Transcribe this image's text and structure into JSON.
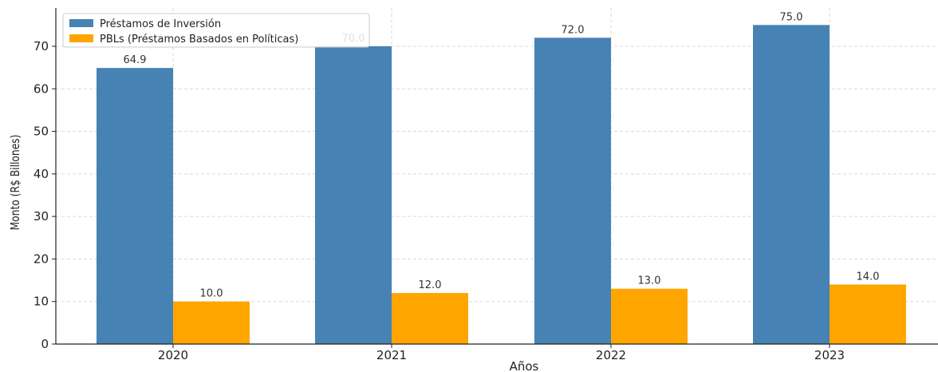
{
  "chart_data": {
    "type": "bar",
    "title": "",
    "xlabel": "Años",
    "ylabel": "Monto (R$ Billones)",
    "categories": [
      "2020",
      "2021",
      "2022",
      "2023"
    ],
    "series": [
      {
        "name": "Préstamos de Inversión",
        "color": "#4682B4",
        "values": [
          64.9,
          70.0,
          72.0,
          75.0
        ],
        "labels": [
          "64.9",
          "70.0",
          "72.0",
          "75.0"
        ]
      },
      {
        "name": "PBLs (Préstamos Basados en Políticas)",
        "color": "#FFA500",
        "values": [
          10.0,
          12.0,
          13.0,
          14.0
        ],
        "labels": [
          "10.0",
          "12.0",
          "13.0",
          "14.0"
        ]
      }
    ],
    "ylim": [
      0,
      79
    ],
    "yticks": [
      0,
      10,
      20,
      30,
      40,
      50,
      60,
      70
    ],
    "grid": true,
    "legend_position": "top-left"
  }
}
